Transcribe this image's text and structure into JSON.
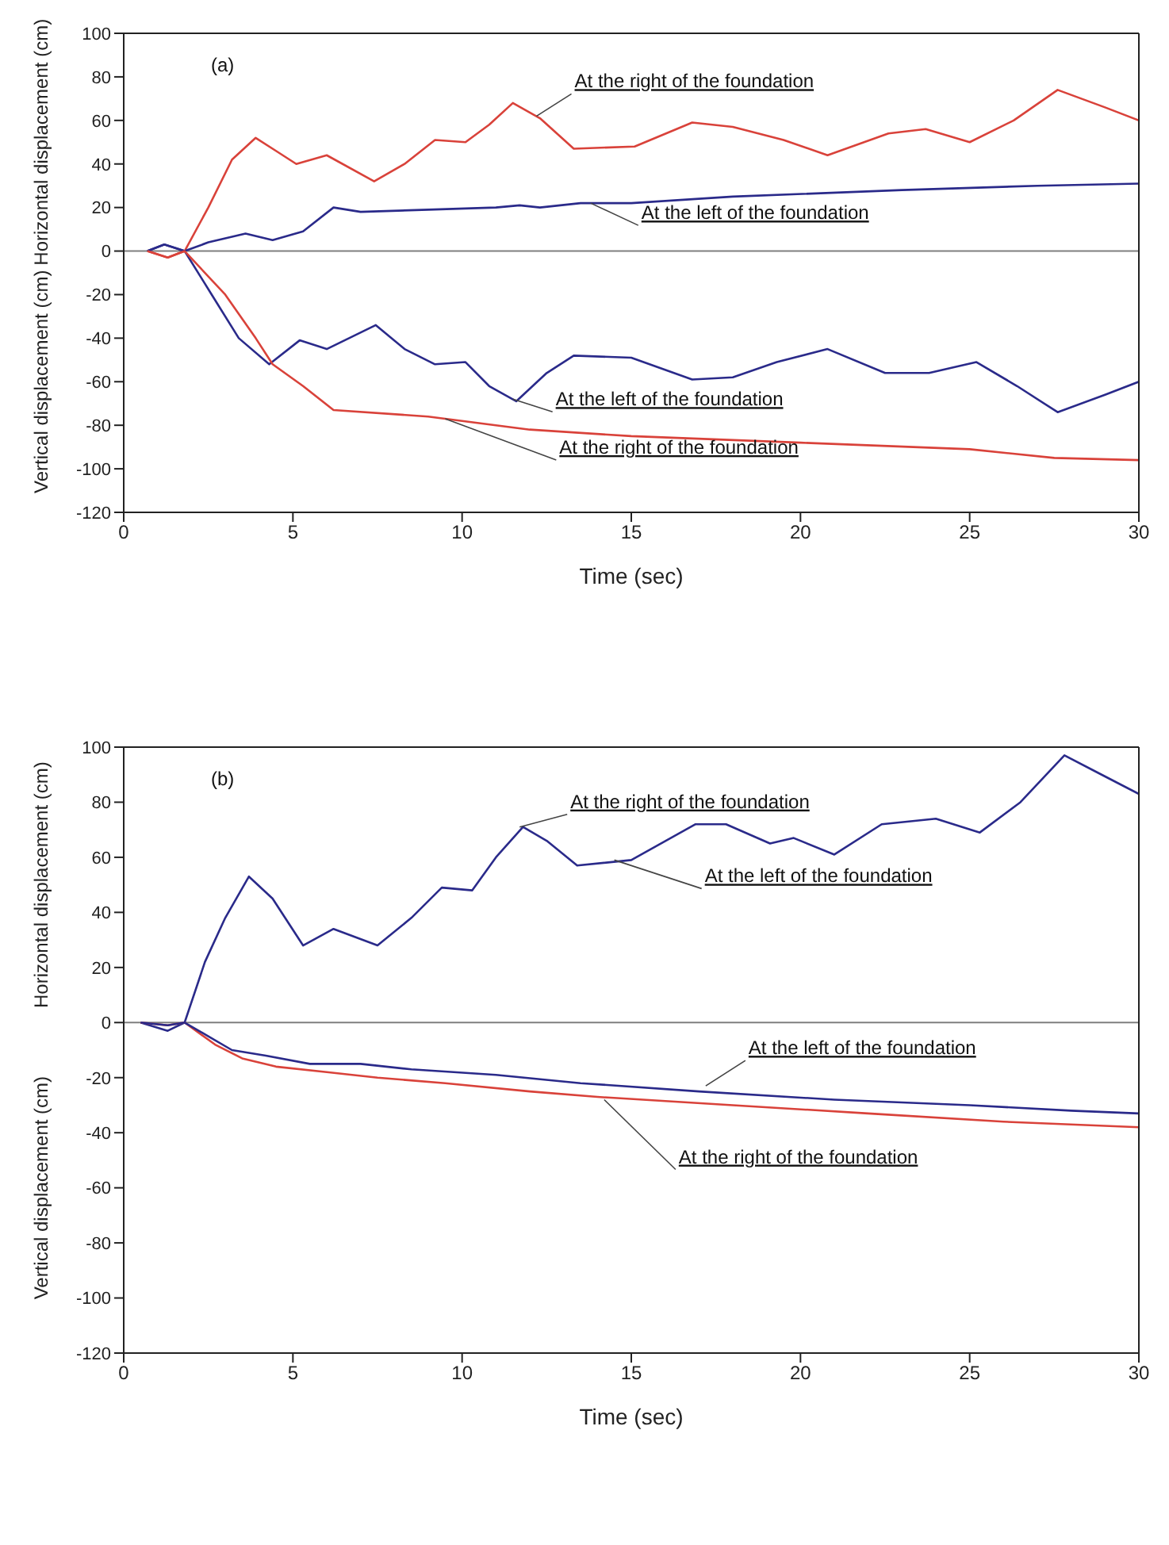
{
  "chart_data": [
    {
      "type": "line",
      "title": "(a)",
      "xlabel": "Time (sec)",
      "ylabel": "Horizontal displacement (cm)",
      "annotations": [
        "Vertical displacement (cm)",
        {
          "text": "At the right of the foundation",
          "x": 12.2,
          "y": 62
        },
        {
          "text": "At the left of the foundation",
          "x": 13.8,
          "y": 22
        },
        {
          "text": "At the left of the foundation",
          "x": 11.5,
          "y": -68
        },
        {
          "text": "At the right of the foundation",
          "x": 9.5,
          "y": -77
        }
      ],
      "series": [
        {
          "color": "#d9423a",
          "x": [
            0.7,
            1.3,
            1.8,
            2.5,
            3.2,
            3.9,
            4.5,
            5.1,
            6.0,
            7.4,
            8.3,
            9.2,
            10.1,
            10.8,
            11.5,
            12.3,
            13.3,
            15.1,
            16.8,
            18.0,
            19.5,
            20.8,
            22.6,
            23.7,
            25.0,
            26.3,
            27.6,
            29.0,
            30
          ],
          "values": [
            0,
            -3,
            0,
            20,
            42,
            52,
            46,
            40,
            44,
            32,
            40,
            51,
            50,
            58,
            68,
            61,
            47,
            48,
            59,
            57,
            51,
            44,
            54,
            56,
            50,
            60,
            74,
            66,
            60
          ]
        },
        {
          "color": "#2a2a8a",
          "x": [
            0.7,
            1.2,
            1.8,
            2.5,
            3.6,
            4.4,
            5.3,
            6.2,
            7.0,
            9.0,
            11.0,
            11.7,
            12.3,
            13.5,
            15,
            18,
            23,
            27,
            30
          ],
          "values": [
            0,
            3,
            0,
            4,
            8,
            5,
            9,
            20,
            18,
            19,
            20,
            21,
            20,
            22,
            22,
            25,
            28,
            30,
            31
          ]
        },
        {
          "color": "#2a2a8a",
          "x": [
            0.7,
            1.2,
            1.8,
            2.6,
            3.4,
            4.3,
            5.2,
            6.0,
            7.45,
            8.3,
            9.2,
            10.1,
            10.8,
            11.6,
            12.5,
            13.3,
            15.0,
            16.8,
            18.0,
            19.3,
            20.8,
            22.5,
            23.8,
            25.2,
            26.4,
            27.6,
            29.0,
            30
          ],
          "values": [
            0,
            3,
            0,
            -20,
            -40,
            -52,
            -41,
            -45,
            -34,
            -45,
            -52,
            -51,
            -62,
            -69,
            -56,
            -48,
            -49,
            -59,
            -58,
            -51,
            -45,
            -56,
            -56,
            -51,
            -62,
            -74,
            -66,
            -60
          ]
        },
        {
          "color": "#d9423a",
          "x": [
            0.7,
            1.3,
            1.8,
            3.0,
            3.9,
            4.4,
            5.3,
            6.2,
            9.0,
            11.0,
            12.0,
            15,
            20,
            25,
            27.5,
            30
          ],
          "values": [
            0,
            -3,
            0,
            -20,
            -40,
            -52,
            -62,
            -73,
            -76,
            -80,
            -82,
            -85,
            -88,
            -91,
            -95,
            -96
          ]
        }
      ],
      "xlim": [
        0,
        30
      ],
      "xticks": [
        0,
        5,
        10,
        15,
        20,
        25,
        30
      ],
      "ylim": [
        -120,
        100
      ],
      "yticks": [
        -120,
        -100,
        -80,
        -60,
        -40,
        -20,
        0,
        20,
        40,
        60,
        80,
        100
      ],
      "ref_lines": [
        {
          "axis": "y",
          "value": 0,
          "color": "#7f7f7f"
        }
      ],
      "grid": false,
      "legend": false,
      "marker": "none",
      "line_style": "solid"
    },
    {
      "type": "line",
      "title": "(b)",
      "xlabel": "Time (sec)",
      "ylabel": "Horizontal displacement (cm)",
      "annotations": [
        "Vertical displacement (cm)",
        {
          "text": "At the right of the foundation",
          "x": 11.7,
          "y": 71
        },
        {
          "text": "At the left of the foundation",
          "x": 14.5,
          "y": 59
        },
        {
          "text": "At the left of the foundation",
          "x": 17.2,
          "y": -23
        },
        {
          "text": "At the right of the foundation",
          "x": 14.2,
          "y": -28
        }
      ],
      "series": [
        {
          "color": "#2a2a8a",
          "x": [
            0.5,
            1.3,
            1.8,
            2.4,
            3.0,
            3.7,
            4.4,
            5.3,
            6.2,
            7.5,
            8.5,
            9.4,
            10.3,
            11.0,
            11.8,
            12.5,
            13.4,
            15.0,
            16.9,
            17.8,
            19.1,
            19.8,
            21.0,
            22.4,
            24.0,
            25.3,
            26.5,
            27.8,
            28.9,
            30
          ],
          "values": [
            0,
            -3,
            0,
            22,
            38,
            53,
            45,
            28,
            34,
            28,
            38,
            49,
            48,
            60,
            71,
            66,
            57,
            59,
            72,
            72,
            65,
            67,
            61,
            72,
            74,
            69,
            80,
            97,
            90,
            83
          ]
        },
        {
          "color": "#d9423a",
          "x": [
            0.5,
            1.3,
            1.8,
            2.7,
            3.5,
            4.5,
            6,
            7.5,
            9.5,
            12,
            14,
            18,
            22,
            26,
            30
          ],
          "values": [
            0,
            -1,
            0,
            -8,
            -13,
            -16,
            -18,
            -20,
            -22,
            -25,
            -27,
            -30,
            -33,
            -36,
            -38
          ]
        },
        {
          "color": "#2a2a8a",
          "x": [
            0.5,
            1.3,
            1.8,
            2.5,
            3.2,
            4.2,
            5.5,
            7,
            8.5,
            11,
            13.5,
            17,
            21,
            25,
            28,
            30
          ],
          "values": [
            0,
            -1,
            0,
            -5,
            -10,
            -12,
            -15,
            -15,
            -17,
            -19,
            -22,
            -25,
            -28,
            -30,
            -32,
            -33
          ]
        }
      ],
      "xlim": [
        0,
        30
      ],
      "xticks": [
        0,
        5,
        10,
        15,
        20,
        25,
        30
      ],
      "ylim": [
        -120,
        100
      ],
      "yticks": [
        -120,
        -100,
        -80,
        -60,
        -40,
        -20,
        0,
        20,
        40,
        60,
        80,
        100
      ],
      "ref_lines": [
        {
          "axis": "y",
          "value": 0,
          "color": "#7f7f7f"
        }
      ],
      "grid": false,
      "legend": false,
      "marker": "none",
      "line_style": "solid"
    }
  ]
}
